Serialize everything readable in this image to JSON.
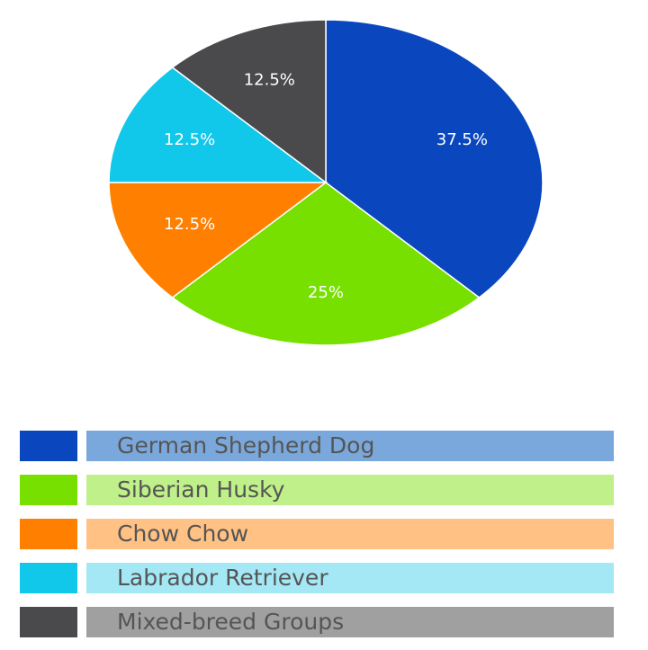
{
  "chart_data": {
    "type": "pie",
    "slices": [
      {
        "label": "German Shepherd Dog",
        "value": 37.5,
        "display": "37.5%",
        "color": "#0a47bf",
        "label_bg": "#7aa8dc"
      },
      {
        "label": "Siberian Husky",
        "value": 25,
        "display": "25%",
        "color": "#77e000",
        "label_bg": "#bff08a"
      },
      {
        "label": "Chow Chow",
        "value": 12.5,
        "display": "12.5%",
        "color": "#ff8000",
        "label_bg": "#ffc184"
      },
      {
        "label": "Labrador Retriever",
        "value": 12.5,
        "display": "12.5%",
        "color": "#12c8ea",
        "label_bg": "#a4e8f6"
      },
      {
        "label": "Mixed-breed Groups",
        "value": 12.5,
        "display": "12.5%",
        "color": "#4a4a4c",
        "label_bg": "#a0a0a0"
      }
    ],
    "start_angle_deg": 0,
    "direction": "clockwise",
    "legend_position": "bottom"
  }
}
